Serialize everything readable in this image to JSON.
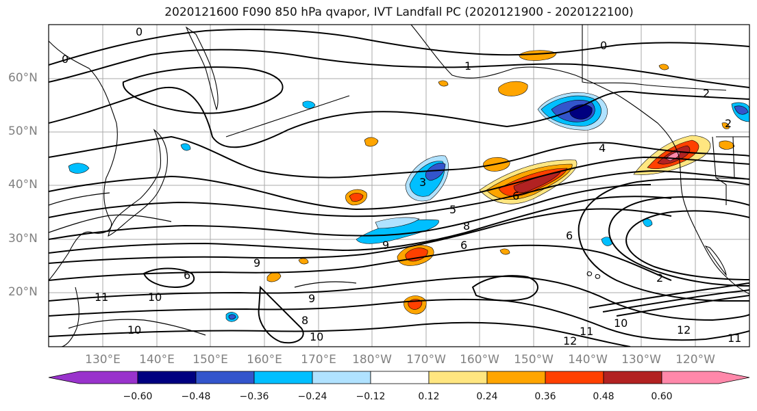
{
  "title": "2020121600 F090 850 hPa qvapor, IVT Landfall PC (2020121900 - 2020122100)",
  "lat_labels": [
    "60°N",
    "50°N",
    "40°N",
    "30°N",
    "20°N"
  ],
  "lon_labels": [
    "130°E",
    "140°E",
    "150°E",
    "160°E",
    "170°E",
    "180°W",
    "170°W",
    "160°W",
    "150°W",
    "140°W",
    "130°W",
    "120°W"
  ],
  "colorbar": {
    "labels": [
      "−0.60",
      "−0.48",
      "−0.36",
      "−0.24",
      "−0.12",
      "0.12",
      "0.24",
      "0.36",
      "0.48",
      "0.60"
    ],
    "colors": [
      "#9933cc",
      "#000080",
      "#3355cc",
      "#00bfff",
      "#b0e2ff",
      "#ffffff",
      "#ffe680",
      "#ffa500",
      "#ff4000",
      "#b22222",
      "#ff88aa"
    ]
  },
  "contour_labels": [
    "0",
    "0",
    "0",
    "1",
    "2",
    "2",
    "3",
    "4",
    "5",
    "6",
    "6",
    "6",
    "6",
    "8",
    "8",
    "9",
    "9",
    "9",
    "10",
    "10",
    "10",
    "10",
    "11",
    "11",
    "11",
    "12",
    "12",
    "2"
  ]
}
